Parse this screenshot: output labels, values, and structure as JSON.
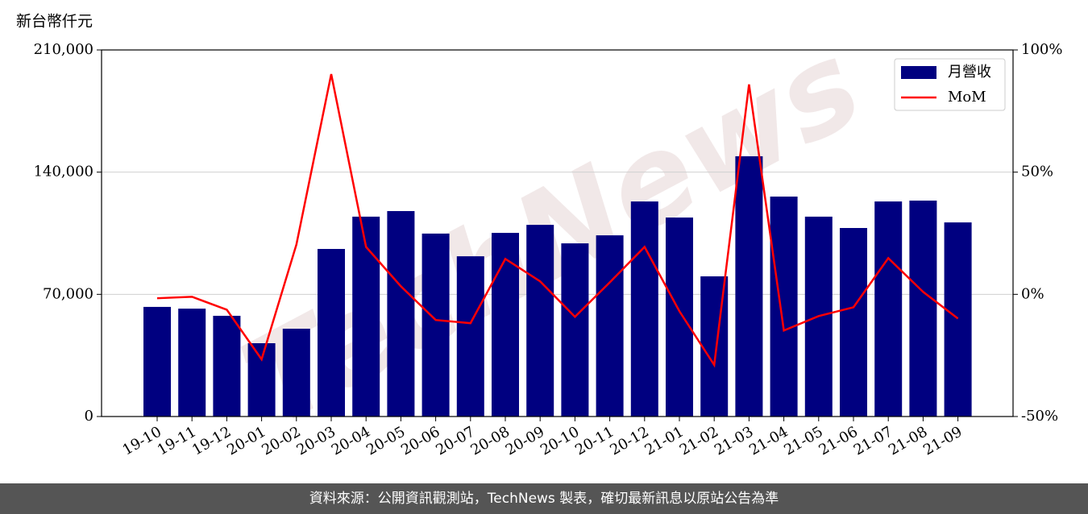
{
  "chart_data": {
    "type": "bar",
    "y_label": "新台幣仟元",
    "watermark": "TechNews",
    "categories": [
      "19-10",
      "19-11",
      "19-12",
      "20-01",
      "20-02",
      "20-03",
      "20-04",
      "20-05",
      "20-06",
      "20-07",
      "20-08",
      "20-09",
      "20-10",
      "20-11",
      "20-12",
      "21-01",
      "21-02",
      "21-03",
      "21-04",
      "21-05",
      "21-06",
      "21-07",
      "21-08",
      "21-09"
    ],
    "series": [
      {
        "name": "月營收",
        "type": "bar",
        "color": "#000080",
        "values": [
          62800,
          61800,
          57700,
          42000,
          50300,
          96000,
          114500,
          117700,
          104800,
          91800,
          105200,
          109800,
          99200,
          103800,
          123200,
          114000,
          80300,
          149100,
          126000,
          114500,
          108000,
          123200,
          123700,
          111200
        ]
      },
      {
        "name": "MoM",
        "type": "line",
        "axis": "y2",
        "color": "#ff0000",
        "values": [
          -1.6,
          -1.0,
          -6.3,
          -26.6,
          20.4,
          90.1,
          19.4,
          3.3,
          -10.5,
          -11.8,
          14.5,
          5.3,
          -9.2,
          4.9,
          19.4,
          -6.9,
          -28.9,
          85.9,
          -14.8,
          -8.9,
          -5.3,
          14.8,
          1.0,
          -9.9
        ]
      }
    ],
    "ylim": [
      0,
      210000
    ],
    "yticks": [
      0,
      {
        "value": 70000,
        "label": "70,000"
      },
      {
        "value": 140000,
        "label": "140,000"
      },
      {
        "value": 210000,
        "label": "210,000"
      }
    ],
    "y2lim": [
      -50,
      100
    ],
    "y2ticks": [
      {
        "value": -50,
        "label": "-50%"
      },
      {
        "value": 0,
        "label": "0%"
      },
      {
        "value": 50,
        "label": "50%"
      },
      {
        "value": 100,
        "label": "100%"
      }
    ],
    "grid": true,
    "legend": "upper-right",
    "footer": "資料來源：公開資訊觀測站，TechNews 製表，確切最新訊息以原站公告為準"
  }
}
